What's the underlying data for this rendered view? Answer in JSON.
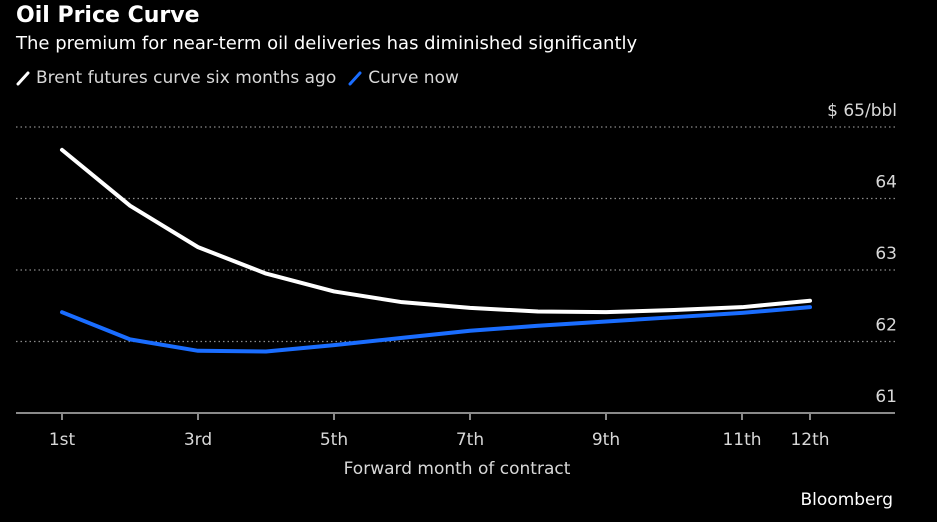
{
  "header": {
    "title": "Oil Price Curve",
    "subtitle": "The premium for near-term oil deliveries has diminished significantly"
  },
  "legend": [
    {
      "label": "Brent futures curve six months ago",
      "color": "#ffffff"
    },
    {
      "label": "Curve now",
      "color": "#1a6dff"
    }
  ],
  "source": "Bloomberg",
  "chart_data": {
    "type": "line",
    "title": "Oil Price Curve",
    "subtitle": "The premium for near-term oil deliveries has diminished significantly",
    "xlabel": "Forward month of contract",
    "ylabel": "$/bbl",
    "x": [
      1,
      2,
      3,
      4,
      5,
      6,
      7,
      8,
      9,
      10,
      11,
      12
    ],
    "x_tick_values": [
      1,
      3,
      5,
      7,
      9,
      11,
      12
    ],
    "x_tick_labels": [
      "1st",
      "3rd",
      "5th",
      "7th",
      "9th",
      "11th",
      "12th"
    ],
    "y_ticks": [
      61,
      62,
      63,
      64,
      65
    ],
    "y_tick_labels": [
      "61",
      "62",
      "63",
      "64",
      "$ 65/bbl"
    ],
    "ylim": [
      61,
      65
    ],
    "xlim": [
      0,
      13.5
    ],
    "grid": true,
    "legend_position": "top-left",
    "series": [
      {
        "name": "Brent futures curve six months ago",
        "color": "#ffffff",
        "values": [
          64.68,
          63.9,
          63.32,
          62.95,
          62.7,
          62.55,
          62.47,
          62.42,
          62.41,
          62.44,
          62.48,
          62.57
        ]
      },
      {
        "name": "Curve now",
        "color": "#1a6dff",
        "values": [
          62.41,
          62.03,
          61.87,
          61.86,
          61.95,
          62.05,
          62.15,
          62.22,
          62.28,
          62.34,
          62.4,
          62.48
        ]
      }
    ]
  }
}
